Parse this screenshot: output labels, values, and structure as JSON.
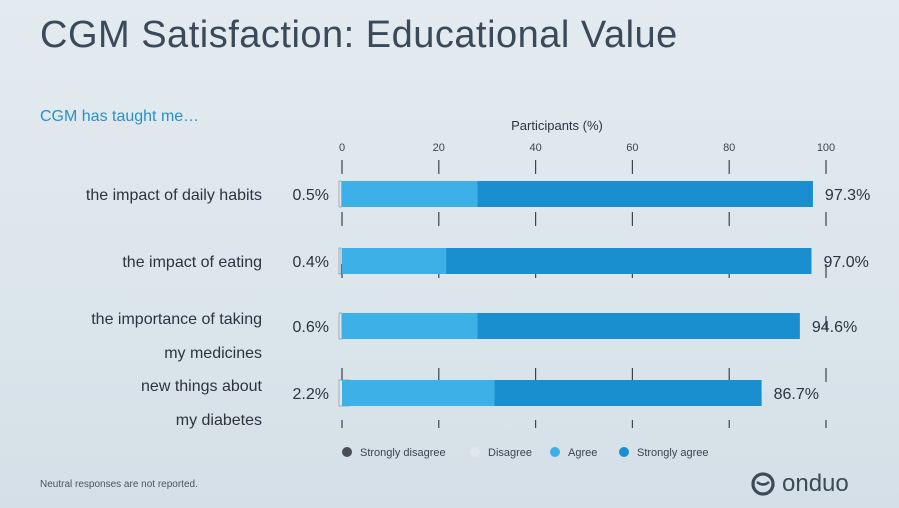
{
  "slide": {
    "title": "CGM Satisfaction: Educational Value",
    "subtitle": "CGM has taught me…",
    "footnote": "Neutral responses are not reported.",
    "logo_text": "onduo"
  },
  "chart_data": {
    "type": "bar",
    "orientation": "horizontal",
    "stacked": true,
    "title": "",
    "xlabel": "Participants (%)",
    "xlim": [
      0,
      100
    ],
    "xticks": [
      0,
      20,
      40,
      60,
      80,
      100
    ],
    "categories": [
      [
        "the impact of daily habits"
      ],
      [
        "the impact of eating"
      ],
      [
        "the importance of taking",
        "my medicines"
      ],
      [
        "new things about",
        "my diabetes"
      ]
    ],
    "series": [
      {
        "name": "Strongly disagree",
        "color": "#4a4f55",
        "values": [
          0,
          0,
          0,
          0
        ]
      },
      {
        "name": "Disagree",
        "color": "#dfe7ee",
        "values": [
          0.5,
          0.4,
          0.6,
          2.2
        ]
      },
      {
        "name": "Agree",
        "color": "#3db0e8",
        "values": [
          28,
          21.5,
          28,
          31.5
        ]
      },
      {
        "name": "Strongly agree",
        "color": "#1a8fd0",
        "values": [
          69.3,
          75.5,
          66.6,
          55.2
        ]
      }
    ],
    "left_labels": [
      "0.5%",
      "0.4%",
      "0.6%",
      "2.2%"
    ],
    "right_labels": [
      "97.3%",
      "97.0%",
      "94.6%",
      "86.7%"
    ],
    "legend_position": "bottom"
  }
}
